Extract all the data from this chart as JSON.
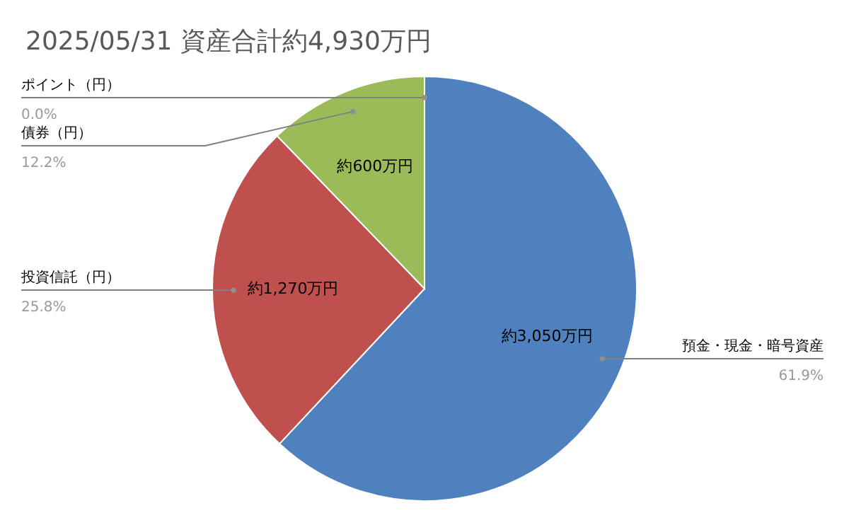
{
  "chart_data": {
    "type": "pie",
    "title": "2025/05/31 資産合計約4,930万円",
    "categories": [
      "預金・現金・暗号資産",
      "投資信託（円）",
      "債券（円）",
      "ポイント（円）"
    ],
    "values": [
      61.9,
      25.8,
      12.2,
      0.0
    ],
    "colors": [
      "#4e81bd",
      "#c0504e",
      "#9bbb59",
      "#8064a2"
    ],
    "value_labels": [
      "61.9%",
      "25.8%",
      "12.2%",
      "0.0%"
    ],
    "annotations": [
      "約3,050万円",
      "約1,270万円",
      "約600万円"
    ]
  }
}
